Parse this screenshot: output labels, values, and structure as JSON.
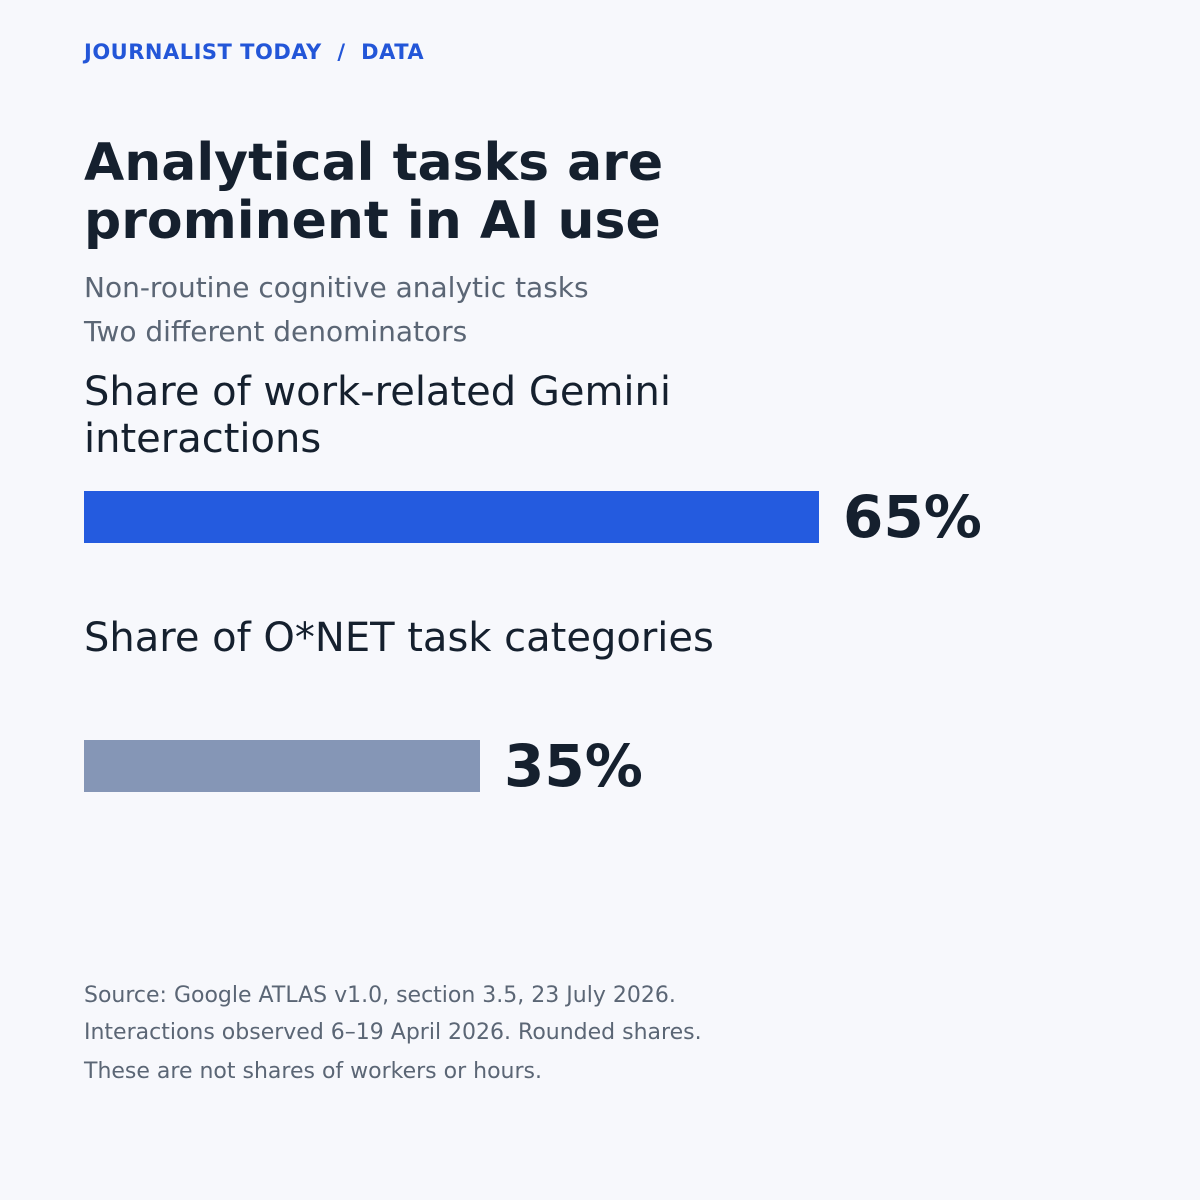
{
  "header": {
    "kicker": "JOURNALIST TODAY  /  DATA"
  },
  "chart_data": {
    "type": "bar",
    "orientation": "horizontal",
    "title": "Analytical tasks are prominent in AI use",
    "subtitle_lines": [
      "Non-routine cognitive analytic tasks",
      "Two different denominators"
    ],
    "categories": [
      "Share of work-related Gemini interactions",
      "Share of O*NET task categories"
    ],
    "values": [
      65,
      35
    ],
    "value_labels": [
      "65%",
      "35%"
    ],
    "unit": "%",
    "xlim": [
      0,
      100
    ],
    "colors": [
      "#245bdf",
      "#8596b6"
    ],
    "grid": false,
    "legend": "none"
  },
  "footer": {
    "notes": [
      "Source: Google ATLAS v1.0, section 3.5, 23 July 2026.",
      "Interactions observed 6–19 April 2026. Rounded shares.",
      "These are not shares of workers or hours."
    ]
  }
}
